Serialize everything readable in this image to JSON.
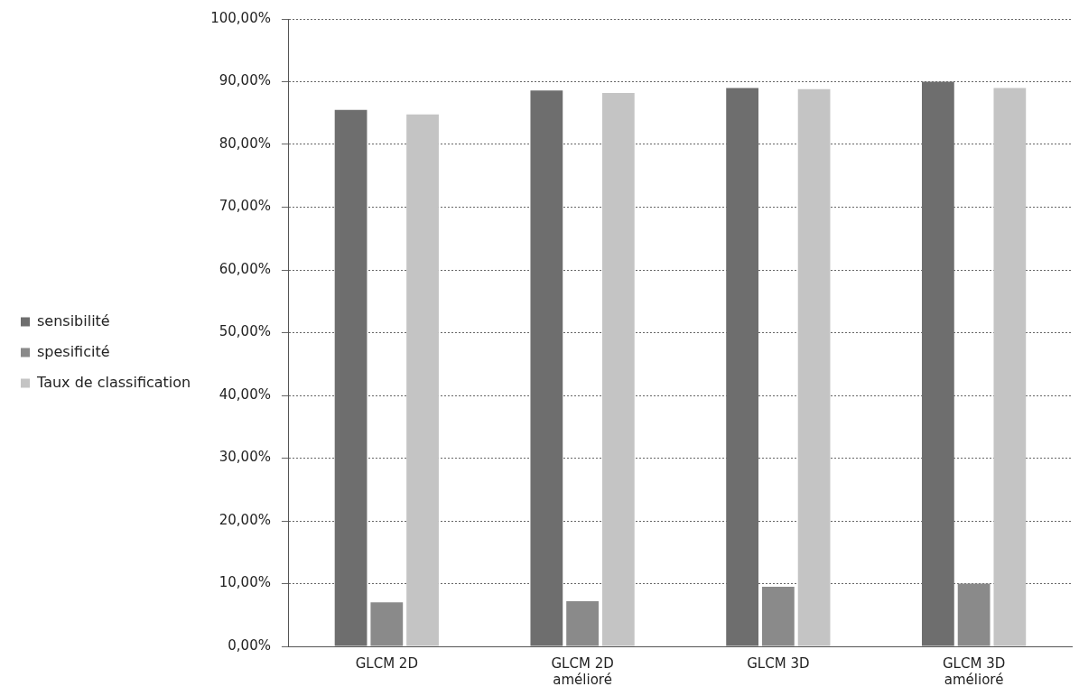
{
  "chart_data": {
    "type": "bar",
    "categories": [
      "GLCM 2D",
      "GLCM 2D amélioré",
      "GLCM 3D",
      "GLCM 3D amélioré"
    ],
    "series": [
      {
        "name": "sensibilité",
        "color": "#6e6e6e",
        "values": [
          85.5,
          88.6,
          89,
          90
        ]
      },
      {
        "name": "spesificité",
        "color": "#8a8a8a",
        "values": [
          7,
          7.2,
          9.5,
          10
        ]
      },
      {
        "name": "Taux de classification",
        "color": "#c4c4c4",
        "values": [
          84.8,
          88.2,
          88.8,
          89
        ]
      }
    ],
    "ylim": [
      0,
      100
    ],
    "yticks": [
      {
        "value": 0,
        "label": "0,00%"
      },
      {
        "value": 10,
        "label": "10,00%"
      },
      {
        "value": 20,
        "label": "20,00%"
      },
      {
        "value": 30,
        "label": "30,00%"
      },
      {
        "value": 40,
        "label": "40,00%"
      },
      {
        "value": 50,
        "label": "50,00%"
      },
      {
        "value": 60,
        "label": "60,00%"
      },
      {
        "value": 70,
        "label": "70,00%"
      },
      {
        "value": 80,
        "label": "80,00%"
      },
      {
        "value": 90,
        "label": "90,00%"
      },
      {
        "value": 100,
        "label": "100,00%"
      }
    ],
    "grid": "y",
    "legend": "left"
  }
}
